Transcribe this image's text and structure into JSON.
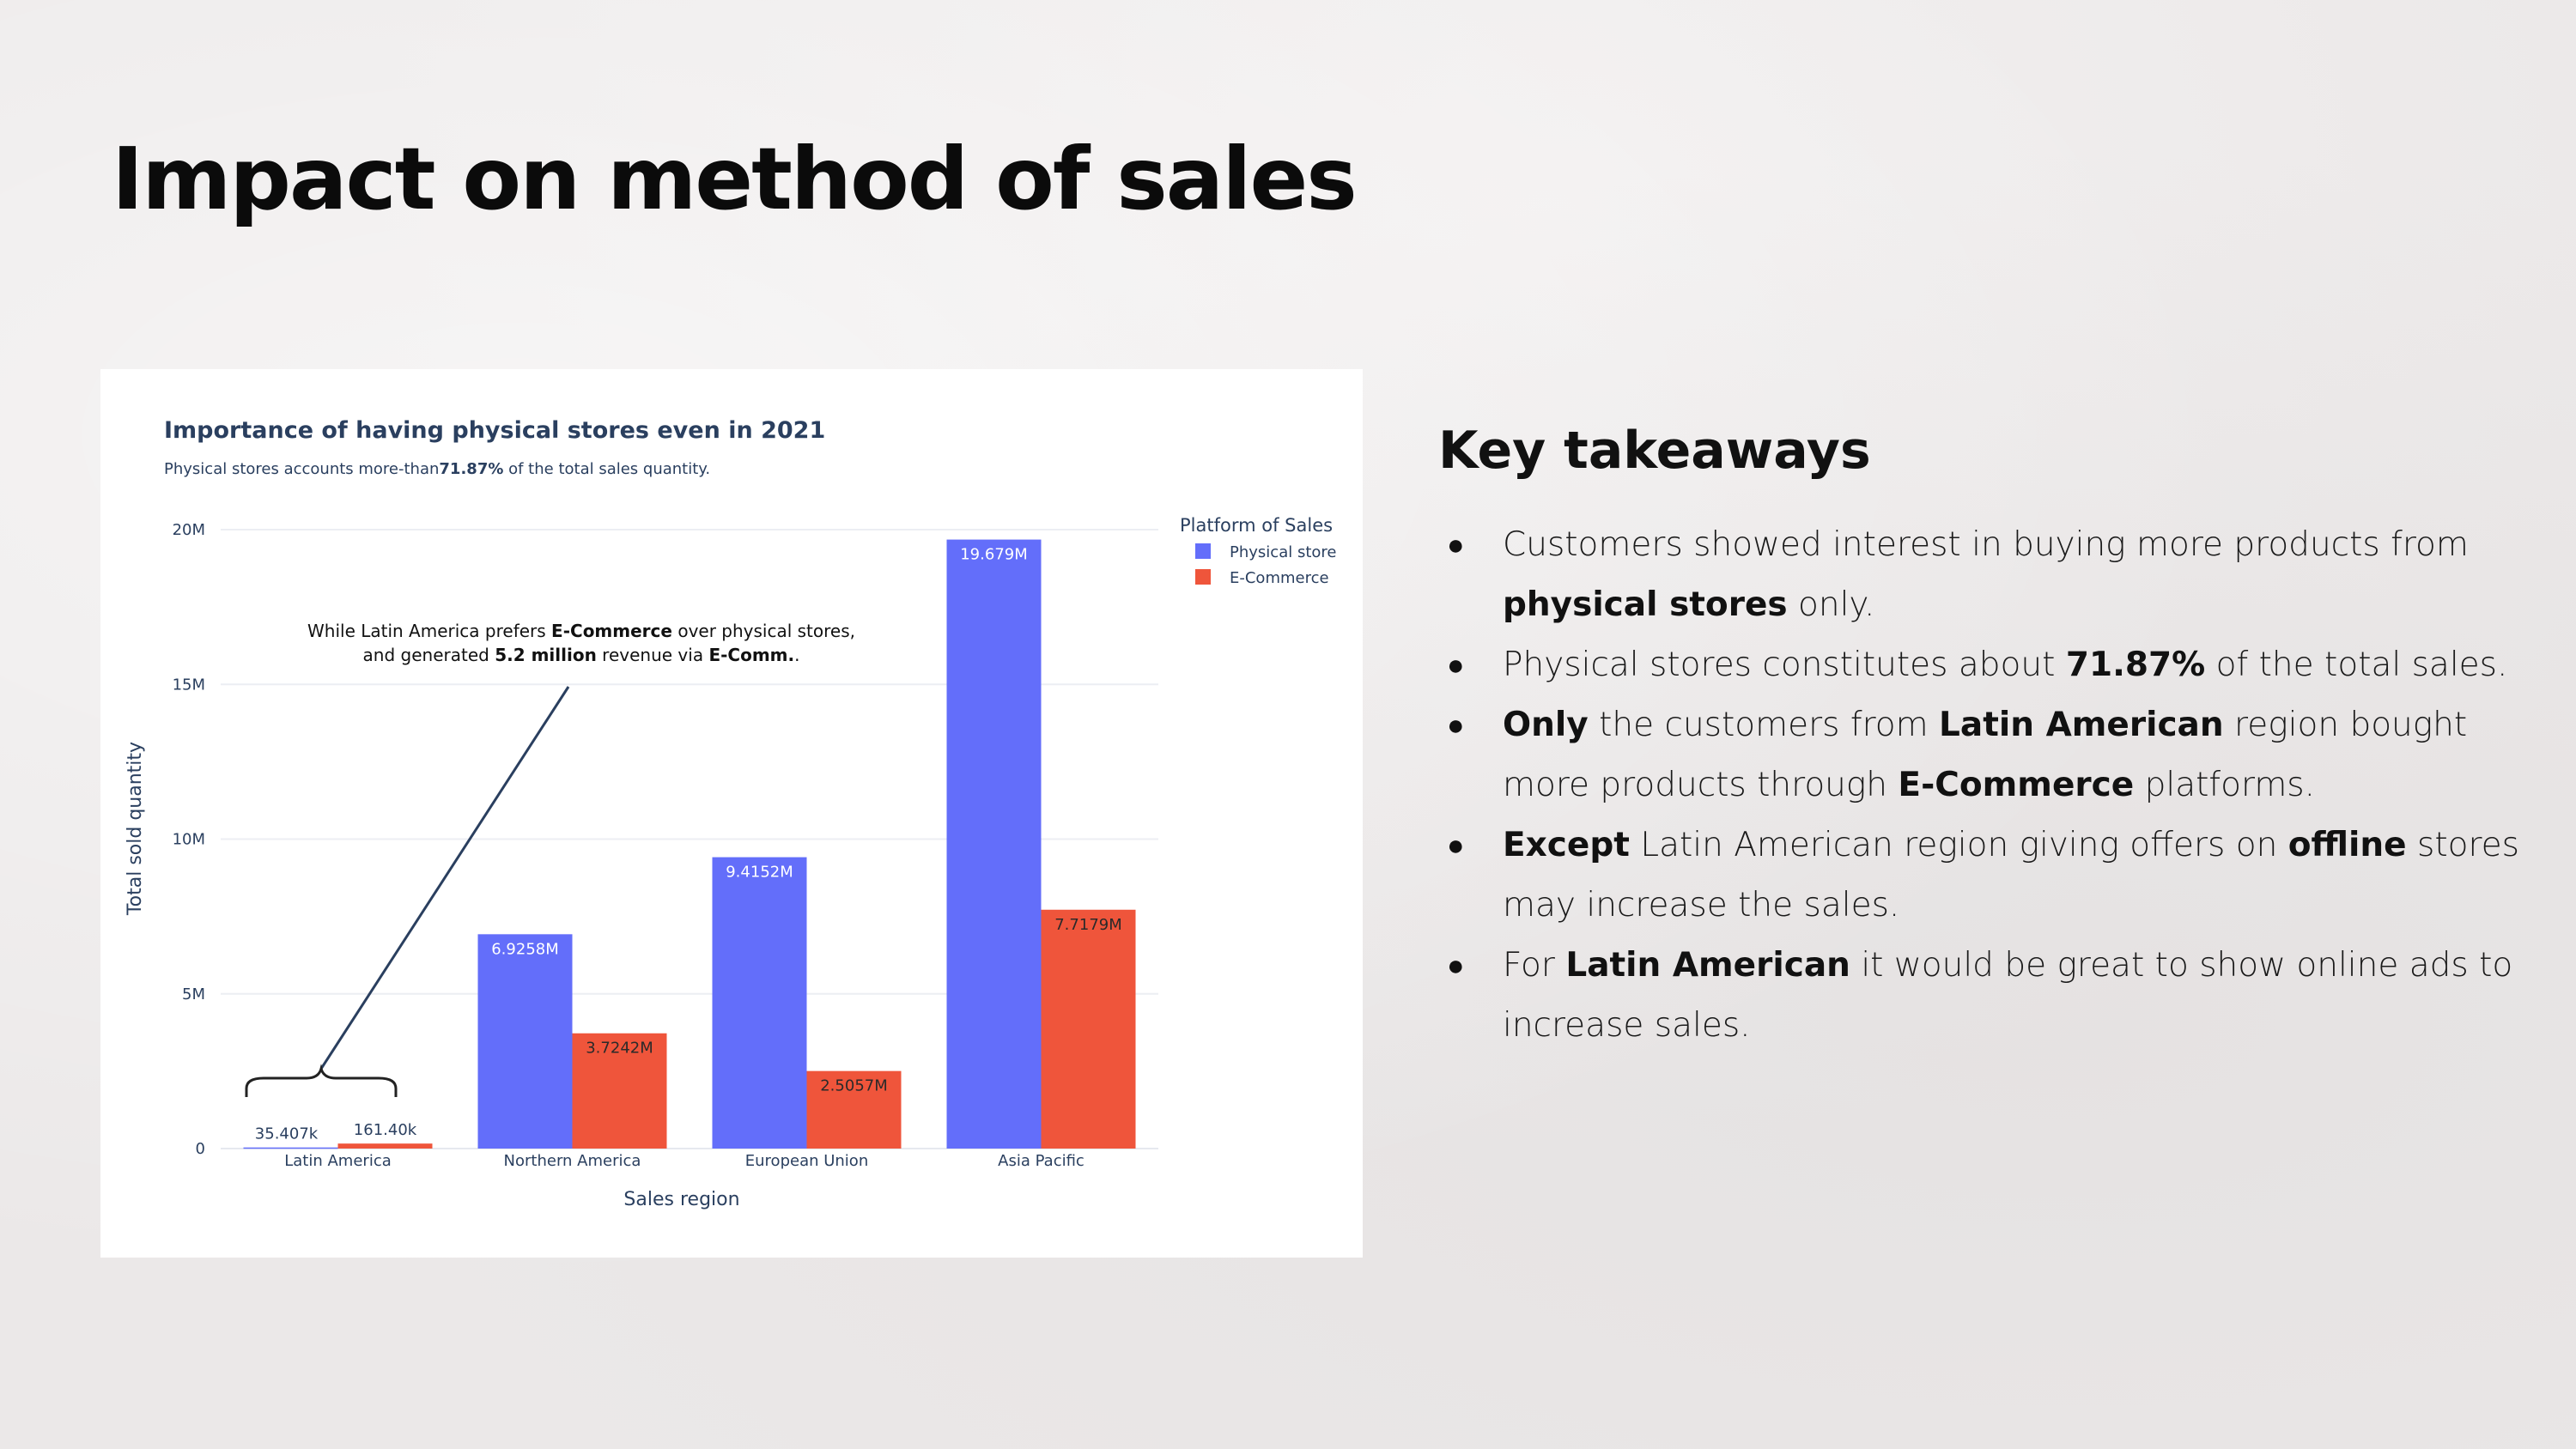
{
  "slide": {
    "title": "Impact on method of sales"
  },
  "chart_data": {
    "type": "bar",
    "title": "Importance of having physical stores even in 2021",
    "subtitle_parts": [
      "Physical stores accounts more-than",
      "71.87%",
      " of the total sales quantity."
    ],
    "categories": [
      "Latin America",
      "Northern America",
      "European Union",
      "Asia Pacific"
    ],
    "series": [
      {
        "name": "Physical store",
        "color": "#636efa",
        "values": [
          35407,
          6925800,
          9415200,
          19679000
        ],
        "labels": [
          "35.407k",
          "6.9258M",
          "9.4152M",
          "19.679M"
        ]
      },
      {
        "name": "E-Commerce",
        "color": "#ef553b",
        "values": [
          161400,
          3724200,
          2505700,
          7717900
        ],
        "labels": [
          "161.40k",
          "3.7242M",
          "2.5057M",
          "7.7179M"
        ]
      }
    ],
    "xlabel": "Sales region",
    "ylabel": "Total sold quantity",
    "ylim": [
      0,
      20000000
    ],
    "yticks": [
      0,
      5000000,
      10000000,
      15000000,
      20000000
    ],
    "ytick_labels": [
      "0",
      "5M",
      "10M",
      "15M",
      "20M"
    ],
    "grid": true,
    "legend": {
      "title": "Platform of Sales",
      "placement": "top-right"
    },
    "annotation": {
      "line1_parts": [
        "While Latin America prefers ",
        "E-Commerce",
        " over physical stores,"
      ],
      "line2_parts": [
        "and generated ",
        "5.2 million",
        " revenue via ",
        "E-Comm.",
        "."
      ]
    }
  },
  "takeaways": {
    "title": "Key takeaways",
    "items": [
      [
        {
          "t": "Customers showed interest in buying more products from "
        },
        {
          "t": "physical stores",
          "b": true
        },
        {
          "t": " only."
        }
      ],
      [
        {
          "t": "Physical stores constitutes about "
        },
        {
          "t": "71.87%",
          "b": true
        },
        {
          "t": " of the total sales."
        }
      ],
      [
        {
          "t": "Only",
          "b": true
        },
        {
          "t": " the customers from "
        },
        {
          "t": "Latin American",
          "b": true
        },
        {
          "t": " region bought more products through "
        },
        {
          "t": "E-Commerce",
          "b": true
        },
        {
          "t": " platforms."
        }
      ],
      [
        {
          "t": "Except",
          "b": true
        },
        {
          "t": " Latin American region giving offers on "
        },
        {
          "t": "offline",
          "b": true
        },
        {
          "t": " stores may increase the sales."
        }
      ],
      [
        {
          "t": "For "
        },
        {
          "t": "Latin American",
          "b": true
        },
        {
          "t": " it would be great to show online ads to increase sales."
        }
      ]
    ]
  }
}
